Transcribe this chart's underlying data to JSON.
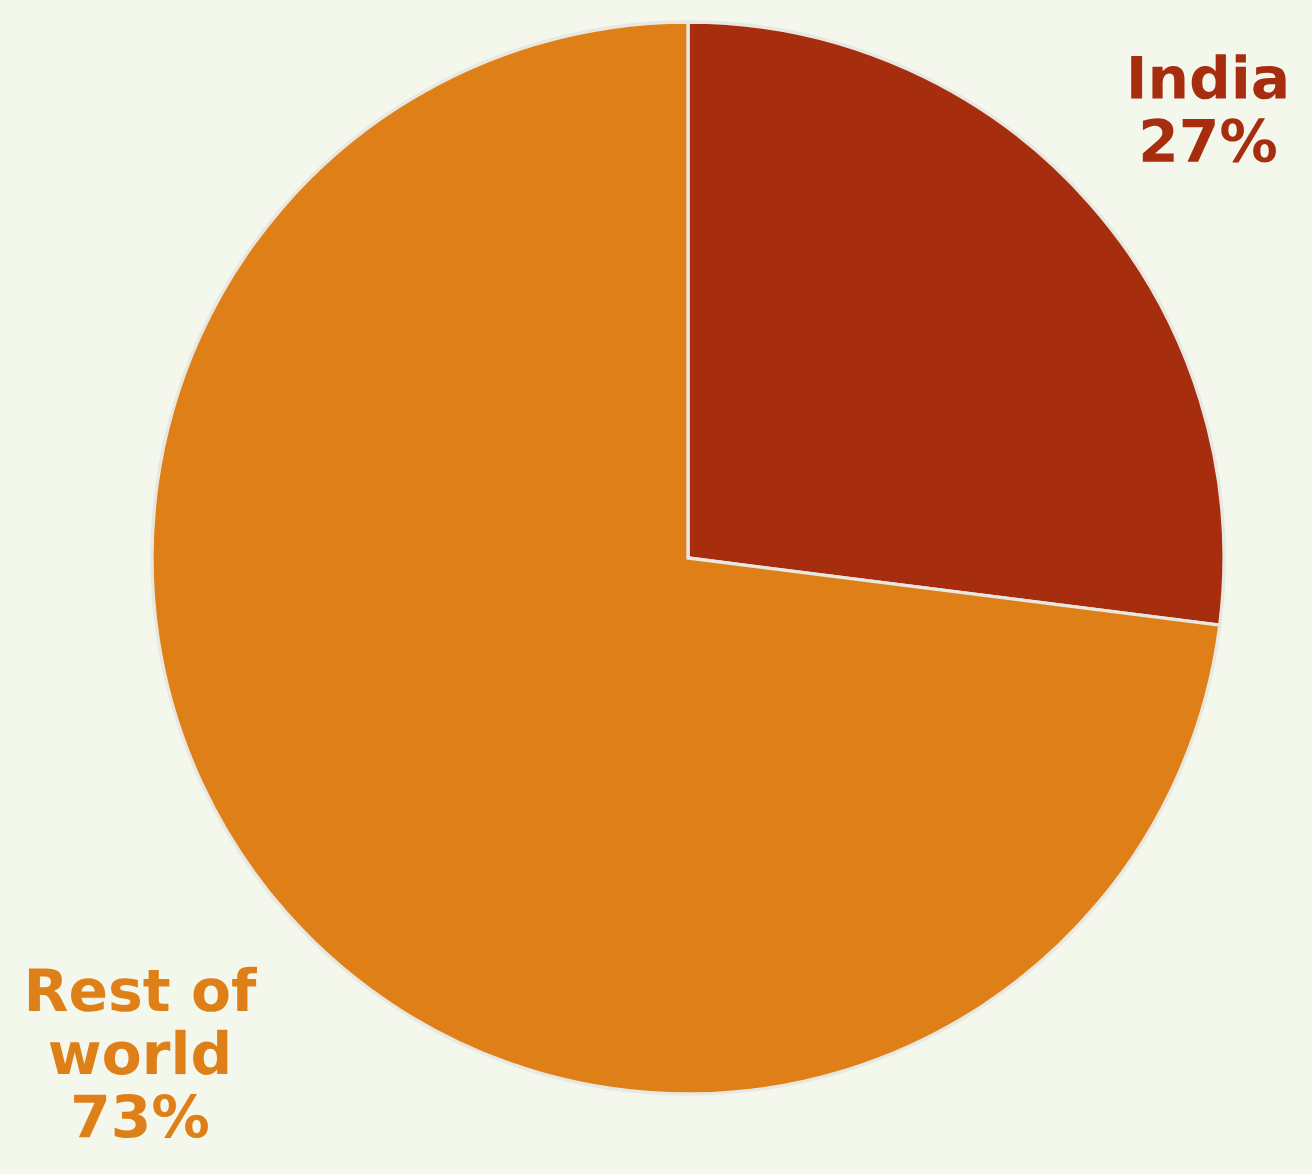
{
  "chart_data": {
    "type": "pie",
    "categories": [
      "India",
      "Rest of\nworld"
    ],
    "values": [
      27,
      73
    ],
    "value_labels": [
      "27%",
      "73%"
    ],
    "colors": [
      "#a62e0f",
      "#df7f18"
    ]
  }
}
